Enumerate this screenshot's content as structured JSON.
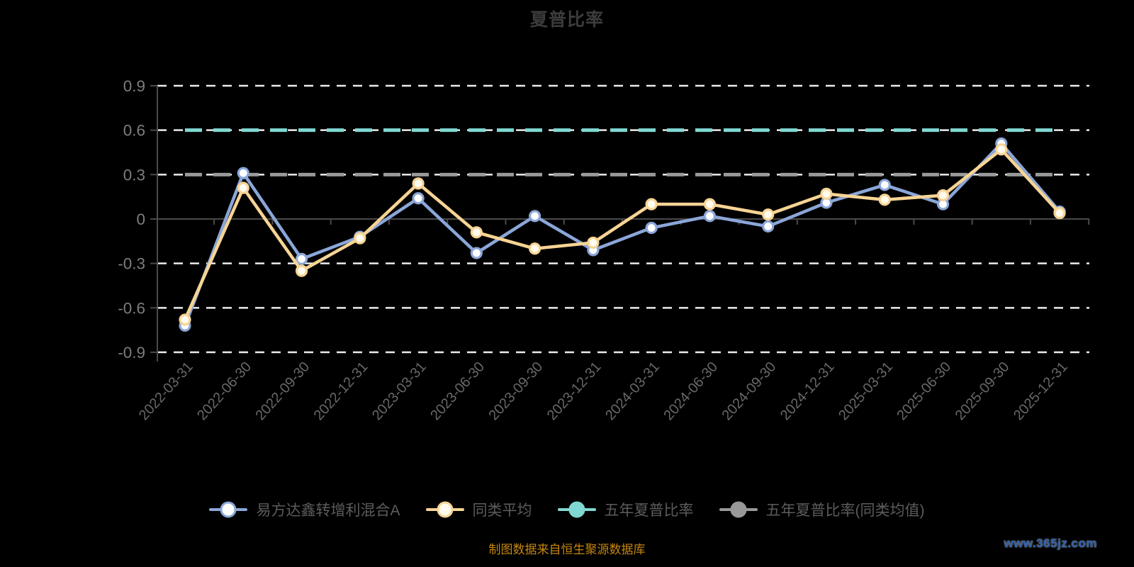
{
  "title": "夏普比率",
  "footer": {
    "source_note": "制图数据来自恒生聚源数据库",
    "watermark": "www.365jz.com"
  },
  "colors": {
    "background": "#000000",
    "title_text": "#3c3c3c",
    "legend_text": "#5c5c5c",
    "y_axis_label": "#7d7d7d",
    "x_axis_label": "#686868",
    "grid_line": "#ebebeb",
    "axis_line": "#4a4a4a",
    "footer_text": "#c5860f",
    "watermark_text": "#2b5fad"
  },
  "chart_data": {
    "type": "line",
    "title": "夏普比率",
    "x": [
      "2022-03-31",
      "2022-06-30",
      "2022-09-30",
      "2022-12-31",
      "2023-03-31",
      "2023-06-30",
      "2023-09-30",
      "2023-12-31",
      "2024-03-31",
      "2024-06-30",
      "2024-09-30",
      "2024-12-31",
      "2025-03-31",
      "2025-06-30",
      "2025-09-30",
      "2025-12-31"
    ],
    "series": [
      {
        "key": "fund",
        "name": "易方达鑫转增利混合A",
        "type": "line",
        "color": "#8ba6d8",
        "marker_fill": "#ffffff",
        "values": [
          -0.72,
          0.31,
          -0.27,
          -0.12,
          0.14,
          -0.23,
          0.02,
          -0.21,
          -0.06,
          0.02,
          -0.05,
          0.11,
          0.23,
          0.1,
          0.51,
          0.05
        ]
      },
      {
        "key": "average",
        "name": "同类平均",
        "type": "line",
        "color": "#f7d494",
        "marker_fill": "#fffbef",
        "values": [
          -0.68,
          0.21,
          -0.35,
          -0.13,
          0.24,
          -0.09,
          -0.2,
          -0.16,
          0.1,
          0.1,
          0.03,
          0.17,
          0.13,
          0.16,
          0.47,
          0.04
        ]
      },
      {
        "key": "five_year",
        "name": "五年夏普比率",
        "type": "hline",
        "color": "#7fd8d2",
        "marker_fill": "#7fd8d2",
        "value": 0.6
      },
      {
        "key": "five_year_avg",
        "name": "五年夏普比率(同类均值)",
        "type": "hline",
        "color": "#999999",
        "marker_fill": "#999999",
        "value": 0.3
      }
    ],
    "yticks": [
      0.9,
      0.6,
      0.3,
      0,
      -0.3,
      -0.6,
      -0.9
    ],
    "ylim": [
      -0.9,
      0.9
    ],
    "grid": "horizontal-dashed-white",
    "legend_position": "bottom"
  }
}
